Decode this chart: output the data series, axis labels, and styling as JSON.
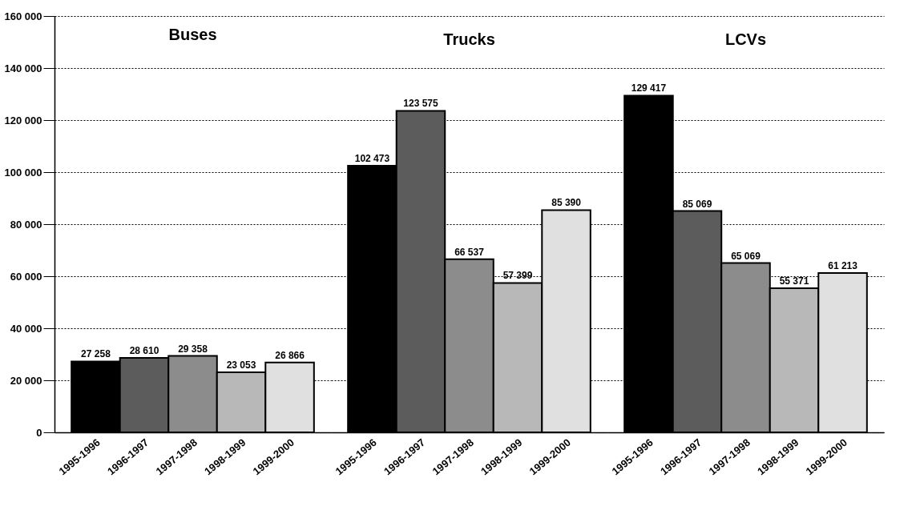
{
  "chart_data": [
    {
      "type": "bar",
      "title": "Buses",
      "categories": [
        "1995-1996",
        "1996-1997",
        "1997-1998",
        "1998-1999",
        "1999-2000"
      ],
      "values": [
        27258,
        28610,
        29358,
        23053,
        26866
      ],
      "colors": [
        "#000000",
        "#5c5c5c",
        "#8c8c8c",
        "#b8b8b8",
        "#e0e0e0"
      ],
      "ylim": [
        0,
        160000
      ],
      "yticks": [
        {
          "value": 0,
          "label": "0"
        },
        {
          "value": 20000,
          "label": "20 000"
        },
        {
          "value": 40000,
          "label": "40 000"
        },
        {
          "value": 60000,
          "label": "60 000"
        },
        {
          "value": 80000,
          "label": "80 000"
        },
        {
          "value": 100000,
          "label": "100 000"
        },
        {
          "value": 120000,
          "label": "120 000"
        },
        {
          "value": 140000,
          "label": "140 000"
        },
        {
          "value": 160000,
          "label": "160 000"
        }
      ],
      "grid": "y",
      "data_labels": true
    },
    {
      "type": "bar",
      "title": "Trucks",
      "categories": [
        "1995-1996",
        "1996-1997",
        "1997-1998",
        "1998-1999",
        "1999-2000"
      ],
      "values": [
        102473,
        123575,
        66537,
        57399,
        85390
      ],
      "colors": [
        "#000000",
        "#5c5c5c",
        "#8c8c8c",
        "#b8b8b8",
        "#e0e0e0"
      ],
      "ylim": [
        0,
        160000
      ],
      "yticks": [
        0,
        20000,
        40000,
        60000,
        80000,
        100000,
        120000,
        140000,
        160000
      ],
      "grid": "y",
      "data_labels": true,
      "tick_labels": "x"
    },
    {
      "type": "bar",
      "title": "LCVs",
      "categories": [
        "1995-1996",
        "1996-1997",
        "1997-1998",
        "1998-1999",
        "1999-2000"
      ],
      "values": [
        129417,
        85069,
        65069,
        55371,
        61213
      ],
      "colors": [
        "#000000",
        "#5c5c5c",
        "#8c8c8c",
        "#b8b8b8",
        "#e0e0e0"
      ],
      "ylim": [
        0,
        160000
      ],
      "yticks": [
        0,
        20000,
        40000,
        60000,
        80000,
        100000,
        120000,
        140000,
        160000
      ],
      "grid": "y",
      "data_labels": true,
      "tick_labels": "x"
    }
  ]
}
